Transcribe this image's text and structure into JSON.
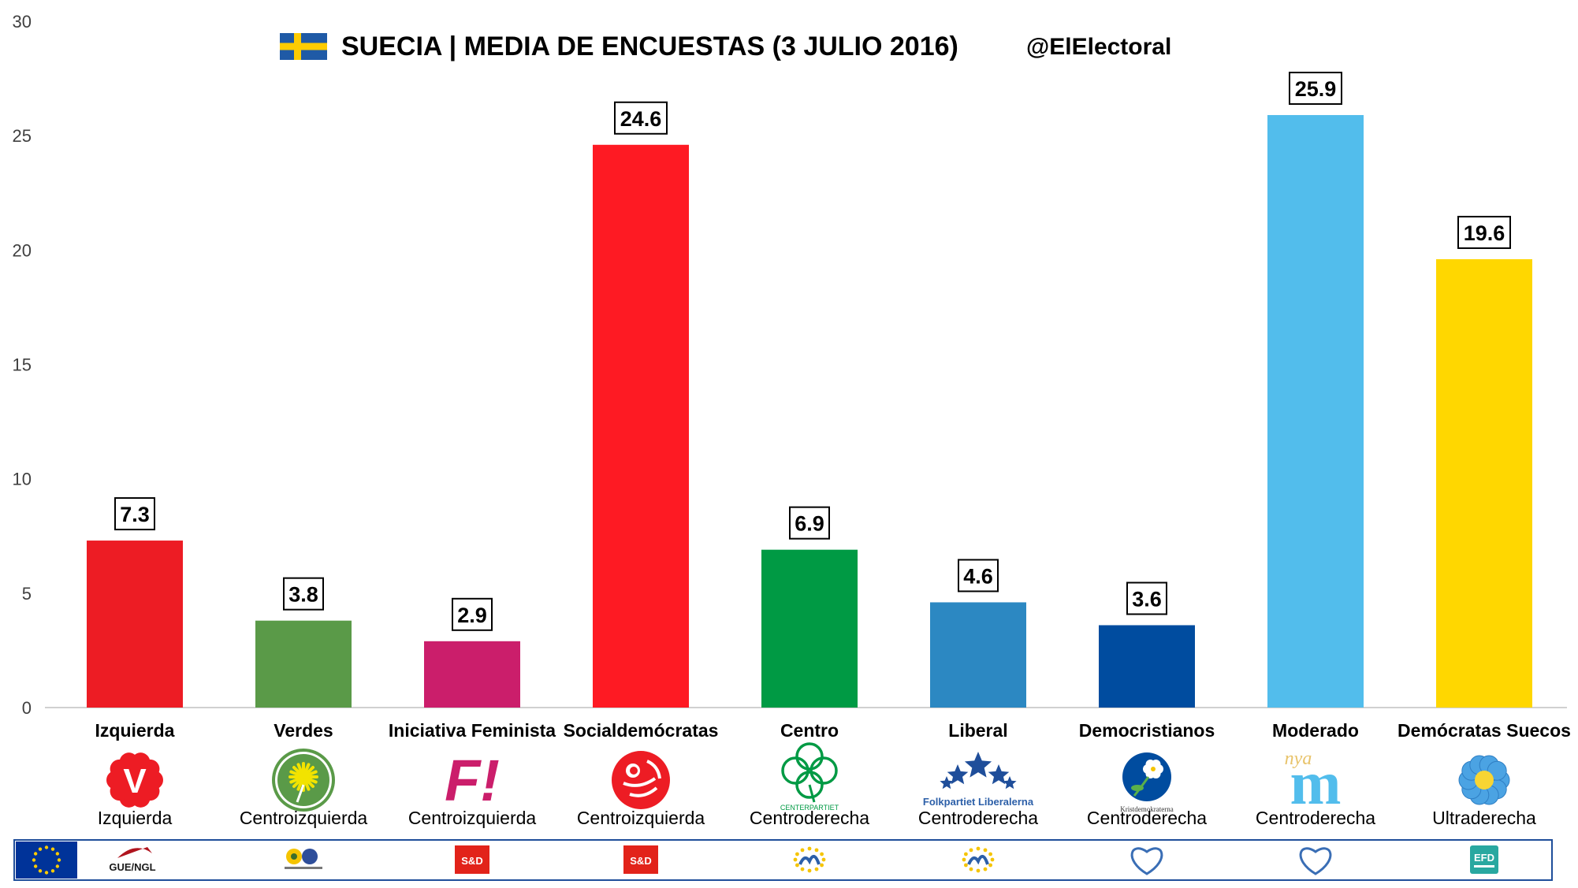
{
  "header": {
    "title": "SUECIA | MEDIA DE ENCUESTAS (3 JULIO 2016)",
    "handle": "@ElElectoral",
    "flag_colors": {
      "blue": "#1F5AA6",
      "yellow": "#FECC02"
    }
  },
  "chart_data": {
    "type": "bar",
    "title": "SUECIA | MEDIA DE ENCUESTAS (3 JULIO 2016)",
    "xlabel": "",
    "ylabel": "",
    "ylim": [
      0,
      30
    ],
    "yticks": [
      0,
      5,
      10,
      15,
      20,
      25,
      30
    ],
    "grid": false,
    "categories": [
      "Izquierda",
      "Verdes",
      "Iniciativa Feminista",
      "Socialdemócratas",
      "Centro",
      "Liberal",
      "Democristianos",
      "Moderado",
      "Demócratas Suecos"
    ],
    "values": [
      7.3,
      3.8,
      2.9,
      24.6,
      6.9,
      4.6,
      3.6,
      25.9,
      19.6
    ],
    "value_labels": [
      "7.3",
      "3.8",
      "2.9",
      "24.6",
      "6.9",
      "4.6",
      "3.6",
      "25.9",
      "19.6"
    ],
    "colors": [
      "#ED1C24",
      "#5A9A48",
      "#CB1E6B",
      "#FE1A23",
      "#009A44",
      "#2C88C2",
      "#004C9F",
      "#52BDEC",
      "#FFD700"
    ],
    "ideologies": [
      "Izquierda",
      "Centroizquierda",
      "Centroizquierda",
      "Centroizquierda",
      "Centroderecha",
      "Centroderecha",
      "Centroderecha",
      "Centroderecha",
      "Ultraderecha"
    ]
  },
  "party_logos": [
    {
      "icon": "v-party-logo-icon",
      "color": "#ED1C24",
      "text": "V"
    },
    {
      "icon": "dandelion-logo-icon",
      "color": "#5A9A48",
      "text": ""
    },
    {
      "icon": "fi-logo-icon",
      "color": "#CB1E6B",
      "text": "F!"
    },
    {
      "icon": "rose-logo-icon",
      "color": "#ED1C24",
      "text": ""
    },
    {
      "icon": "clover-logo-icon",
      "color": "#009A44",
      "text": "CENTERPARTIET"
    },
    {
      "icon": "stars-logo-icon",
      "color": "#1F4E9A",
      "text": "Folkpartiet Liberalerna"
    },
    {
      "icon": "anemone-logo-icon",
      "color": "#004C9F",
      "text": "Kristdemokraterna"
    },
    {
      "icon": "nya-m-logo-icon",
      "color": "#52BDEC",
      "text": "m"
    },
    {
      "icon": "blue-flower-logo-icon",
      "color": "#4BA3E3",
      "text": ""
    }
  ],
  "eu_groups": [
    {
      "icon": "gue-ngl-logo-icon",
      "text": "GUE/NGL",
      "color": "#B0141E"
    },
    {
      "icon": "greens-efa-logo-icon",
      "text": "",
      "color": "#3C6E2D"
    },
    {
      "icon": "s-and-d-logo-icon",
      "text": "S&D",
      "color": "#E2231A"
    },
    {
      "icon": "s-and-d-logo-icon",
      "text": "S&D",
      "color": "#E2231A"
    },
    {
      "icon": "alde-logo-icon",
      "text": "",
      "color": "#F5C400"
    },
    {
      "icon": "alde-logo-icon",
      "text": "",
      "color": "#F5C400"
    },
    {
      "icon": "epp-logo-icon",
      "text": "",
      "color": "#3A6EB5"
    },
    {
      "icon": "epp-logo-icon",
      "text": "",
      "color": "#3A6EB5"
    },
    {
      "icon": "efdd-logo-icon",
      "text": "EFD",
      "color": "#29A8A0"
    }
  ],
  "eu_flag_colors": {
    "blue": "#003399",
    "yellow": "#FFCC00"
  }
}
